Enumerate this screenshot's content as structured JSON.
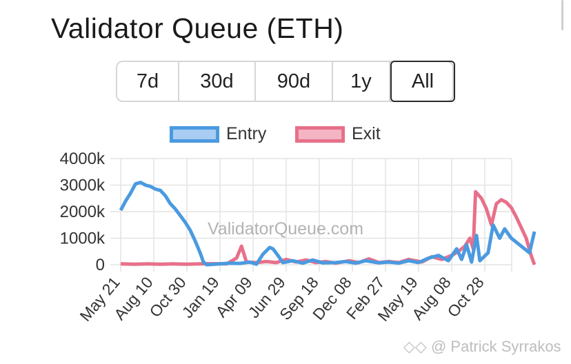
{
  "page": {
    "title": "Validator Queue (ETH)",
    "watermark": "ValidatorQueue.com",
    "credit_icon": "diamond-logo-icon",
    "credit": "@ Patrick Syrrakos"
  },
  "range_selector": {
    "options": [
      "7d",
      "30d",
      "90d",
      "1y",
      "All"
    ],
    "active": "All"
  },
  "colors": {
    "entry_line": "#4a9ae0",
    "entry_fill": "#a9cdf2",
    "exit_line": "#e8708a",
    "exit_fill": "#f3b5c3",
    "grid": "#e4e4e4",
    "text": "#333333"
  },
  "chart_data": {
    "type": "line",
    "title": "",
    "xlabel": "",
    "ylabel": "",
    "ylim": [
      0,
      4000
    ],
    "yticks": [
      0,
      1000,
      2000,
      3000,
      4000
    ],
    "ytick_labels": [
      "0",
      "1000k",
      "2000k",
      "3000k",
      "4000k"
    ],
    "xtick_labels": [
      "May 21",
      "Aug 10",
      "Oct 30",
      "Jan 19",
      "Apr 09",
      "Jun 29",
      "Sep 18",
      "Dec 08",
      "Feb 27",
      "May 19",
      "Aug 08",
      "Oct 28"
    ],
    "x_index_range": [
      0,
      14
    ],
    "grid": true,
    "legend_position": "top-center",
    "series": [
      {
        "name": "Entry",
        "color": "#4a9ae0",
        "points": [
          [
            0.0,
            2050
          ],
          [
            0.15,
            2400
          ],
          [
            0.3,
            2700
          ],
          [
            0.45,
            3050
          ],
          [
            0.6,
            3100
          ],
          [
            0.75,
            3000
          ],
          [
            0.9,
            2950
          ],
          [
            1.05,
            2850
          ],
          [
            1.2,
            2800
          ],
          [
            1.35,
            2600
          ],
          [
            1.5,
            2300
          ],
          [
            1.65,
            2100
          ],
          [
            1.8,
            1850
          ],
          [
            1.95,
            1600
          ],
          [
            2.1,
            1300
          ],
          [
            2.25,
            900
          ],
          [
            2.4,
            450
          ],
          [
            2.5,
            100
          ],
          [
            2.6,
            0
          ],
          [
            3.0,
            30
          ],
          [
            3.3,
            60
          ],
          [
            3.6,
            50
          ],
          [
            3.9,
            100
          ],
          [
            4.1,
            20
          ],
          [
            4.3,
            400
          ],
          [
            4.5,
            650
          ],
          [
            4.6,
            600
          ],
          [
            4.75,
            350
          ],
          [
            4.9,
            80
          ],
          [
            5.2,
            150
          ],
          [
            5.5,
            60
          ],
          [
            5.8,
            180
          ],
          [
            6.1,
            70
          ],
          [
            6.5,
            80
          ],
          [
            6.8,
            120
          ],
          [
            7.1,
            60
          ],
          [
            7.4,
            150
          ],
          [
            7.8,
            70
          ],
          [
            8.1,
            100
          ],
          [
            8.4,
            60
          ],
          [
            8.7,
            150
          ],
          [
            9.0,
            80
          ],
          [
            9.3,
            250
          ],
          [
            9.6,
            350
          ],
          [
            9.9,
            150
          ],
          [
            10.15,
            600
          ],
          [
            10.3,
            200
          ],
          [
            10.45,
            750
          ],
          [
            10.6,
            100
          ],
          [
            10.75,
            1100
          ],
          [
            10.85,
            150
          ],
          [
            11.1,
            450
          ],
          [
            11.25,
            1500
          ],
          [
            11.45,
            1000
          ],
          [
            11.6,
            1350
          ],
          [
            11.8,
            1000
          ],
          [
            12.0,
            800
          ],
          [
            12.2,
            600
          ],
          [
            12.35,
            450
          ],
          [
            12.5,
            1250
          ]
        ]
      },
      {
        "name": "Exit",
        "color": "#e8708a",
        "points": [
          [
            0.0,
            30
          ],
          [
            0.4,
            20
          ],
          [
            0.8,
            30
          ],
          [
            1.2,
            20
          ],
          [
            1.6,
            30
          ],
          [
            2.0,
            20
          ],
          [
            2.4,
            30
          ],
          [
            2.8,
            40
          ],
          [
            3.2,
            30
          ],
          [
            3.5,
            250
          ],
          [
            3.65,
            700
          ],
          [
            3.8,
            100
          ],
          [
            4.1,
            80
          ],
          [
            4.4,
            120
          ],
          [
            4.7,
            80
          ],
          [
            5.0,
            200
          ],
          [
            5.3,
            100
          ],
          [
            5.6,
            180
          ],
          [
            5.9,
            80
          ],
          [
            6.2,
            120
          ],
          [
            6.5,
            60
          ],
          [
            6.9,
            150
          ],
          [
            7.2,
            80
          ],
          [
            7.5,
            220
          ],
          [
            7.8,
            80
          ],
          [
            8.1,
            120
          ],
          [
            8.4,
            80
          ],
          [
            8.7,
            200
          ],
          [
            9.1,
            100
          ],
          [
            9.4,
            300
          ],
          [
            9.7,
            200
          ],
          [
            10.0,
            350
          ],
          [
            10.2,
            500
          ],
          [
            10.4,
            700
          ],
          [
            10.55,
            1000
          ],
          [
            10.65,
            600
          ],
          [
            10.72,
            2750
          ],
          [
            10.9,
            2500
          ],
          [
            11.05,
            2100
          ],
          [
            11.2,
            1500
          ],
          [
            11.35,
            2300
          ],
          [
            11.5,
            2450
          ],
          [
            11.65,
            2350
          ],
          [
            11.8,
            2150
          ],
          [
            11.95,
            1800
          ],
          [
            12.1,
            1400
          ],
          [
            12.25,
            1000
          ],
          [
            12.4,
            350
          ],
          [
            12.5,
            0
          ]
        ]
      }
    ]
  }
}
